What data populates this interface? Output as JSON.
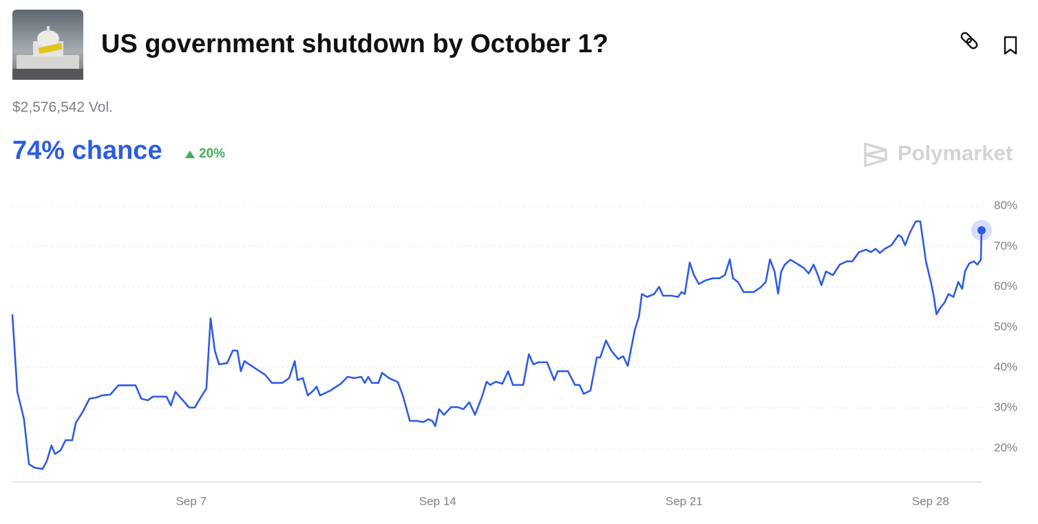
{
  "header": {
    "title": "US government shutdown by October 1?",
    "volume": "$2,576,542 Vol.",
    "chance": "74% chance",
    "change": "20%"
  },
  "brand": "Polymarket",
  "chart_data": {
    "type": "line",
    "color": "#2d5be3",
    "grid": true,
    "x": [
      1.92,
      2.06,
      2.25,
      2.39,
      2.55,
      2.78,
      2.9,
      3.03,
      3.13,
      3.29,
      3.43,
      3.62,
      3.72,
      3.91,
      4.11,
      4.31,
      4.46,
      4.7,
      4.93,
      5.42,
      5.58,
      5.77,
      5.91,
      6.3,
      6.42,
      6.55,
      6.81,
      6.94,
      7.1,
      7.27,
      7.43,
      7.55,
      7.67,
      7.79,
      8.02,
      8.18,
      8.31,
      8.41,
      8.51,
      8.8,
      9.1,
      9.29,
      9.59,
      9.78,
      9.94,
      10.02,
      10.17,
      10.31,
      10.47,
      10.56,
      10.66,
      10.95,
      11.25,
      11.44,
      11.64,
      11.83,
      11.93,
      12.03,
      12.13,
      12.32,
      12.42,
      12.62,
      12.87,
      13.01,
      13.21,
      13.4,
      13.6,
      13.73,
      13.85,
      13.93,
      14.04,
      14.18,
      14.38,
      14.57,
      14.73,
      14.9,
      15.06,
      15.26,
      15.39,
      15.49,
      15.65,
      15.84,
      16.0,
      16.14,
      16.43,
      16.59,
      16.72,
      16.86,
      17.11,
      17.31,
      17.41,
      17.7,
      17.9,
      18.03,
      18.15,
      18.34,
      18.52,
      18.62,
      18.78,
      18.93,
      19.13,
      19.27,
      19.4,
      19.6,
      19.72,
      19.8,
      19.95,
      20.15,
      20.29,
      20.4,
      20.64,
      20.83,
      20.93,
      21.02,
      21.16,
      21.28,
      21.42,
      21.61,
      21.81,
      22.0,
      22.16,
      22.3,
      22.39,
      22.53,
      22.69,
      22.98,
      23.18,
      23.32,
      23.44,
      23.57,
      23.67,
      23.76,
      23.86,
      24.02,
      24.25,
      24.41,
      24.54,
      24.68,
      24.8,
      24.9,
      25.03,
      25.23,
      25.42,
      25.62,
      25.78,
      25.97,
      26.17,
      26.31,
      26.44,
      26.56,
      26.7,
      26.89,
      27.09,
      27.18,
      27.28,
      27.42,
      27.58,
      27.71,
      27.87,
      28.01,
      28.09,
      28.17,
      28.28,
      28.4,
      28.51,
      28.65,
      28.79,
      28.9,
      28.98,
      29.1,
      29.23,
      29.33,
      29.43,
      29.45
    ],
    "values": [
      53.0,
      34.0,
      27.2,
      16.1,
      15.2,
      14.9,
      16.9,
      20.7,
      18.6,
      19.5,
      22.0,
      22.0,
      26.3,
      28.9,
      32.3,
      32.6,
      33.1,
      33.3,
      35.6,
      35.6,
      32.3,
      31.9,
      32.8,
      32.8,
      30.6,
      34.0,
      31.4,
      30.1,
      30.1,
      32.6,
      34.8,
      52.2,
      44.2,
      40.8,
      41.1,
      44.2,
      44.2,
      39.1,
      41.6,
      39.9,
      38.2,
      36.2,
      36.2,
      37.4,
      41.6,
      36.9,
      37.4,
      33.1,
      34.3,
      35.3,
      33.1,
      34.3,
      36.0,
      37.7,
      37.4,
      37.7,
      36.2,
      37.7,
      36.2,
      36.2,
      38.7,
      37.4,
      36.4,
      33.1,
      26.8,
      26.8,
      26.5,
      27.2,
      26.8,
      25.5,
      29.7,
      28.3,
      30.2,
      30.2,
      29.7,
      31.4,
      28.3,
      32.8,
      36.5,
      35.7,
      36.5,
      36.0,
      39.1,
      35.7,
      35.7,
      43.3,
      40.8,
      41.3,
      41.3,
      36.9,
      39.1,
      39.1,
      35.7,
      35.7,
      33.5,
      34.3,
      42.5,
      42.5,
      46.7,
      44.2,
      42.1,
      42.8,
      40.4,
      49.3,
      52.7,
      58.2,
      57.5,
      58.2,
      60.0,
      57.8,
      57.8,
      57.5,
      58.7,
      58.2,
      66.0,
      62.9,
      60.7,
      61.6,
      62.1,
      62.1,
      62.9,
      66.8,
      62.1,
      61.2,
      58.7,
      58.7,
      59.9,
      61.2,
      66.8,
      63.8,
      58.3,
      63.8,
      65.5,
      66.7,
      65.5,
      64.6,
      63.3,
      65.5,
      62.9,
      60.4,
      63.8,
      62.9,
      65.5,
      66.3,
      66.3,
      68.6,
      69.2,
      68.6,
      69.4,
      68.4,
      69.4,
      70.3,
      72.8,
      72.3,
      70.3,
      73.5,
      76.2,
      76.2,
      66.3,
      61.2,
      57.8,
      53.2,
      54.8,
      56.1,
      58.2,
      57.5,
      61.2,
      59.5,
      63.8,
      65.8,
      66.3,
      65.5,
      66.7,
      74
    ],
    "xlim": [
      1.92,
      29.45
    ],
    "xticks": [
      {
        "value": 7,
        "label": "Sep 7"
      },
      {
        "value": 14,
        "label": "Sep 14"
      },
      {
        "value": 21,
        "label": "Sep 21"
      },
      {
        "value": 28,
        "label": "Sep 28"
      }
    ],
    "ylim": [
      11.65,
      83
    ],
    "yticks": [
      {
        "value": 20,
        "label": "20%"
      },
      {
        "value": 30,
        "label": "30%"
      },
      {
        "value": 40,
        "label": "40%"
      },
      {
        "value": 50,
        "label": "50%"
      },
      {
        "value": 60,
        "label": "60%"
      },
      {
        "value": 70,
        "label": "70%"
      },
      {
        "value": 80,
        "label": "80%"
      }
    ]
  }
}
